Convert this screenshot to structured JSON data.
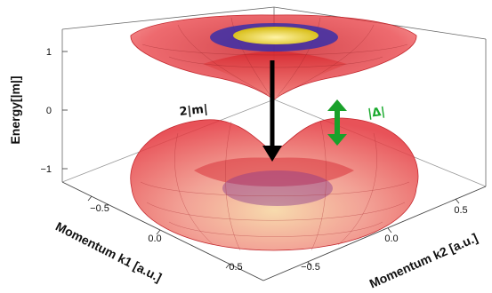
{
  "axes": {
    "z_label": "Energy[|m|]",
    "x_label": "Momentum k1 [a.u.]",
    "y_label": "Momentum k2 [a.u.]",
    "z_ticks": [
      "1",
      "0",
      "−1"
    ],
    "x_ticks": [
      "−0.5",
      "0.0",
      "0.5"
    ],
    "y_ticks": [
      "−0.5",
      "0.0",
      "0.5"
    ]
  },
  "annotations": {
    "gap_label": "2|m|",
    "delta_label": "|Δ|"
  },
  "colors": {
    "band": "#e8393f",
    "band_light": "#f6a49c",
    "ring_blue": "#3a2fa8",
    "ring_yellow": "#e7d21d",
    "arrow_black": "#000000",
    "arrow_green": "#19a12a",
    "delta_text": "#18a92c"
  }
}
